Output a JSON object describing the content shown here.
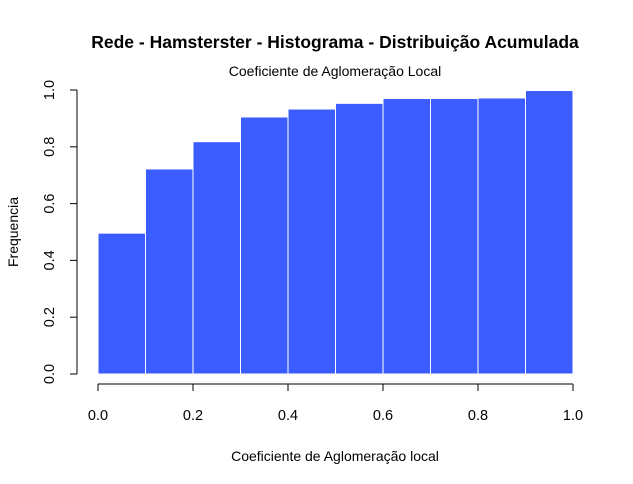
{
  "chart_data": {
    "type": "bar",
    "title": "Rede - Hamsterster - Histograma - Distribuição Acumulada",
    "subtitle": "Coeficiente de Aglomeração Local",
    "xlabel": "Coeficiente de Aglomeração local",
    "ylabel": "Frequencia",
    "bin_edges": [
      0.0,
      0.1,
      0.2,
      0.3,
      0.4,
      0.5,
      0.6,
      0.7,
      0.8,
      0.9,
      1.0
    ],
    "values": [
      0.496,
      0.722,
      0.818,
      0.905,
      0.933,
      0.953,
      0.97,
      0.97,
      0.972,
      0.998
    ],
    "xlim": [
      0,
      1
    ],
    "ylim": [
      0,
      1
    ],
    "x_ticks": [
      "0.0",
      "0.2",
      "0.4",
      "0.6",
      "0.8",
      "1.0"
    ],
    "x_tick_values": [
      0,
      0.2,
      0.4,
      0.6,
      0.8,
      1.0
    ],
    "y_ticks": [
      "0.0",
      "0.2",
      "0.4",
      "0.6",
      "0.8",
      "1.0"
    ],
    "y_tick_values": [
      0,
      0.2,
      0.4,
      0.6,
      0.8,
      1.0
    ],
    "bar_color": "#3b5cff",
    "bar_edge_color": "#ffffff",
    "grid": false,
    "legend": "none"
  }
}
